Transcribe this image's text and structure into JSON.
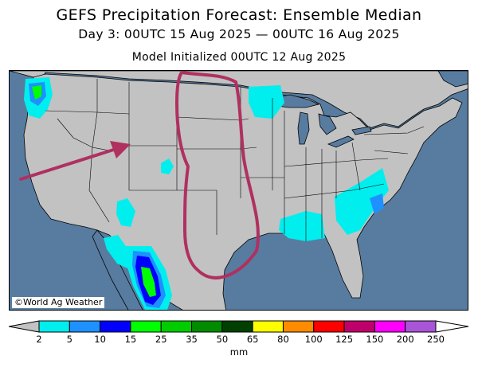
{
  "header": {
    "title": "GEFS Precipitation Forecast: Ensemble Median",
    "subtitle": "Day 3: 00UTC 15 Aug 2025 — 00UTC 16 Aug 2025",
    "init": "Model Initialized 00UTC 12 Aug 2025"
  },
  "map": {
    "copyright": "©World Ag Weather",
    "colors": {
      "ocean": "#587ca0",
      "land": "#c2c2c2",
      "boundary": "#000000",
      "annotation": "#b03060"
    },
    "annotations": [
      "arrow-pointing-to-colorado",
      "outline-around-great-plains"
    ]
  },
  "legend": {
    "unit": "mm",
    "ticks": [
      "2",
      "5",
      "10",
      "15",
      "25",
      "35",
      "50",
      "65",
      "80",
      "100",
      "125",
      "150",
      "200",
      "250"
    ],
    "colors": [
      "#00eeee",
      "#1e90ff",
      "#0000ff",
      "#00ff00",
      "#00cd00",
      "#008b00",
      "#004000",
      "#ffff00",
      "#ff8c00",
      "#ff0000",
      "#c0006a",
      "#ff00ff",
      "#a855d8"
    ],
    "under_color": "#c2c2c2",
    "over_color": "#ffffff"
  }
}
